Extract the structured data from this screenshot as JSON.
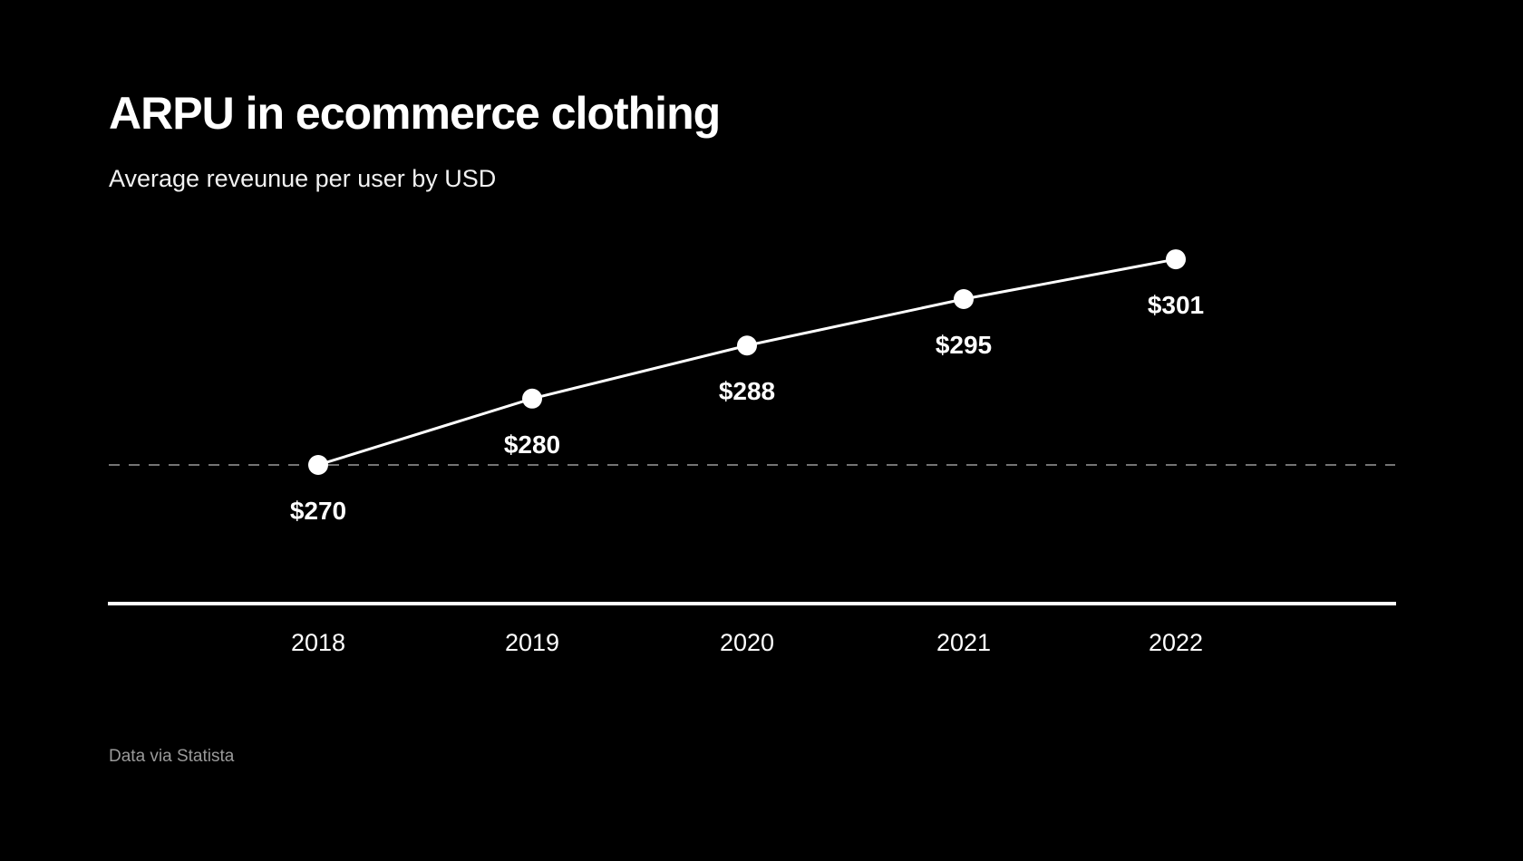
{
  "chart_data": {
    "type": "line",
    "title": "ARPU in ecommerce clothing",
    "subtitle": "Average reveunue per user by USD",
    "categories": [
      "2018",
      "2019",
      "2020",
      "2021",
      "2022"
    ],
    "values": [
      270,
      280,
      288,
      295,
      301
    ],
    "data_labels": [
      "$270",
      "$280",
      "$288",
      "$295",
      "$301"
    ],
    "reference_line": {
      "value": 270,
      "style": "dashed"
    },
    "xlabel": "",
    "ylabel": "",
    "grid": false,
    "legend": "none",
    "source": "Data via Statista",
    "colors": {
      "background": "#000000",
      "line": "#ffffff",
      "reference": "#9a9a9a",
      "source_text": "#9a9a9a"
    }
  }
}
